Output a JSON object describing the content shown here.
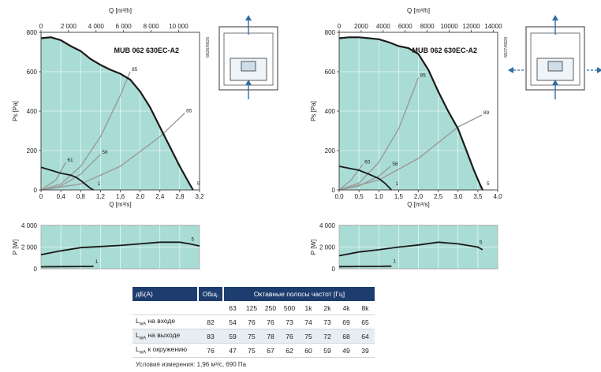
{
  "colors": {
    "fill": "#a9dcd5",
    "curve": "#1a1a1a",
    "system": "#9a9a9a",
    "axis": "#222222",
    "grid": "#ffffff",
    "header": "#1d3d6e",
    "arrow": "#2f6ea5"
  },
  "panels": [
    {
      "side_code": "6826/8826",
      "chart_data": {
        "type": "line",
        "title": "MUB 062 630EC-A2",
        "xlabel": "Q [m³/s]",
        "ylabel": "Ps [Pa]",
        "x2label": "Q [m³/h]",
        "xlim": [
          0,
          3.2
        ],
        "ylim": [
          0,
          800
        ],
        "x_ticks": [
          "0",
          "0,4",
          "0,8",
          "1,2",
          "1,6",
          "2,0",
          "2,4",
          "2,8",
          "3,2"
        ],
        "y_ticks": [
          "0",
          "200",
          "400",
          "600",
          "800"
        ],
        "x2_ticks": [
          "0",
          "2 000",
          "4 000",
          "6 000",
          "8 000",
          "10 000"
        ],
        "series": [
          {
            "name": "5",
            "x": [
              0,
              0.2,
              0.4,
              0.6,
              0.8,
              1.0,
              1.2,
              1.4,
              1.6,
              1.8,
              2.0,
              2.2,
              2.4,
              2.6,
              2.8,
              3.0,
              3.07
            ],
            "y": [
              770,
              775,
              760,
              730,
              705,
              665,
              635,
              610,
              590,
              560,
              500,
              420,
              320,
              220,
              120,
              30,
              0
            ]
          },
          {
            "name": "1",
            "x": [
              0,
              0.2,
              0.4,
              0.5,
              0.6,
              0.7,
              0.8,
              0.9,
              1.0,
              1.06
            ],
            "y": [
              115,
              100,
              85,
              80,
              75,
              65,
              48,
              28,
              8,
              0
            ]
          }
        ],
        "system_curves": [
          {
            "label": "85",
            "x": [
              0,
              0.4,
              0.8,
              1.2,
              1.6,
              1.8
            ],
            "y": [
              0,
              30,
              120,
              270,
              480,
              600
            ]
          },
          {
            "label": "65",
            "x": [
              0,
              0.8,
              1.6,
              2.4,
              2.9
            ],
            "y": [
              0,
              30,
              120,
              270,
              390
            ]
          },
          {
            "label": "58",
            "x": [
              0,
              0.4,
              0.8,
              1.2
            ],
            "y": [
              0,
              20,
              80,
              180
            ]
          },
          {
            "label": "61",
            "x": [
              0,
              0.3,
              0.5
            ],
            "y": [
              0,
              50,
              140
            ]
          }
        ],
        "power": {
          "ylabel": "P [W]",
          "ylim": [
            0,
            4000
          ],
          "y_ticks": [
            "0",
            "2 000",
            "4 000"
          ],
          "series": [
            {
              "name": "5",
              "x": [
                0,
                0.4,
                0.8,
                1.2,
                1.6,
                2.0,
                2.4,
                2.8,
                3.0,
                3.2
              ],
              "y": [
                1300,
                1650,
                1950,
                2050,
                2150,
                2300,
                2450,
                2450,
                2300,
                2100
              ]
            },
            {
              "name": "1",
              "x": [
                0,
                0.4,
                0.8,
                1.06
              ],
              "y": [
                180,
                200,
                210,
                220
              ]
            }
          ]
        }
      }
    },
    {
      "side_code": "6827/8828",
      "chart_data": {
        "type": "line",
        "title": "MUB 062 630EC-A2",
        "xlabel": "Q [m³/s]",
        "ylabel": "Ps [Pa]",
        "x2label": "Q [m³/h]",
        "xlim": [
          0,
          4.0
        ],
        "ylim": [
          0,
          800
        ],
        "x_ticks": [
          "0,0",
          "0,5",
          "1,0",
          "1,5",
          "2,0",
          "2,5",
          "3,0",
          "3,5",
          "4,0"
        ],
        "y_ticks": [
          "0",
          "200",
          "400",
          "600",
          "800"
        ],
        "x2_ticks": [
          "0",
          "2000",
          "4000",
          "6000",
          "8000",
          "10000",
          "12000",
          "14000"
        ],
        "series": [
          {
            "name": "5",
            "x": [
              0,
              0.25,
              0.5,
              0.75,
              1.0,
              1.25,
              1.5,
              1.75,
              2.0,
              2.25,
              2.5,
              2.75,
              3.0,
              3.25,
              3.4,
              3.55,
              3.62
            ],
            "y": [
              770,
              775,
              775,
              770,
              765,
              750,
              730,
              720,
              690,
              610,
              500,
              400,
              310,
              180,
              100,
              30,
              0
            ]
          },
          {
            "name": "1",
            "x": [
              0,
              0.25,
              0.5,
              0.75,
              1.0,
              1.15,
              1.25,
              1.32
            ],
            "y": [
              120,
              110,
              100,
              80,
              58,
              35,
              15,
              0
            ]
          }
        ],
        "system_curves": [
          {
            "label": "85",
            "x": [
              0,
              0.5,
              1.0,
              1.5,
              2.0
            ],
            "y": [
              0,
              35,
              140,
              310,
              570
            ]
          },
          {
            "label": "89",
            "x": [
              0,
              1.0,
              2.0,
              3.0,
              3.6
            ],
            "y": [
              0,
              50,
              160,
              320,
              380
            ]
          },
          {
            "label": "58",
            "x": [
              0,
              0.5,
              1.0,
              1.3
            ],
            "y": [
              0,
              20,
              70,
              120
            ]
          },
          {
            "label": "60",
            "x": [
              0,
              0.3,
              0.6
            ],
            "y": [
              0,
              50,
              130
            ]
          }
        ],
        "power": {
          "ylabel": "P [W]",
          "ylim": [
            0,
            4000
          ],
          "y_ticks": [
            "0",
            "2 000",
            "4 000"
          ],
          "series": [
            {
              "name": "5",
              "x": [
                0,
                0.5,
                1.0,
                1.5,
                2.0,
                2.5,
                3.0,
                3.5,
                3.62
              ],
              "y": [
                1200,
                1550,
                1750,
                2000,
                2200,
                2450,
                2300,
                2000,
                1750
              ]
            },
            {
              "name": "1",
              "x": [
                0,
                0.5,
                1.0,
                1.32
              ],
              "y": [
                200,
                210,
                220,
                240
              ]
            }
          ]
        }
      }
    }
  ],
  "table": {
    "col0_header": "дБ(А)",
    "col1_header": "Общ.",
    "bands_header": "Октавные полосы частот [Гц]",
    "bands": [
      "63",
      "125",
      "250",
      "500",
      "1k",
      "2k",
      "4k",
      "8k"
    ],
    "rows": [
      {
        "label_prefix": "L",
        "label_sub": "wA",
        "label_rest": " на входе",
        "total": "82",
        "values": [
          "54",
          "76",
          "76",
          "73",
          "74",
          "73",
          "69",
          "65"
        ]
      },
      {
        "label_prefix": "L",
        "label_sub": "wA",
        "label_rest": " на выходе",
        "total": "83",
        "values": [
          "59",
          "75",
          "78",
          "76",
          "75",
          "72",
          "68",
          "64"
        ]
      },
      {
        "label_prefix": "L",
        "label_sub": "wA",
        "label_rest": " к окружению",
        "total": "76",
        "values": [
          "47",
          "75",
          "67",
          "62",
          "60",
          "59",
          "49",
          "39"
        ]
      }
    ],
    "note": "Условия измерения: 1,96 м³/с, 690 Па"
  }
}
